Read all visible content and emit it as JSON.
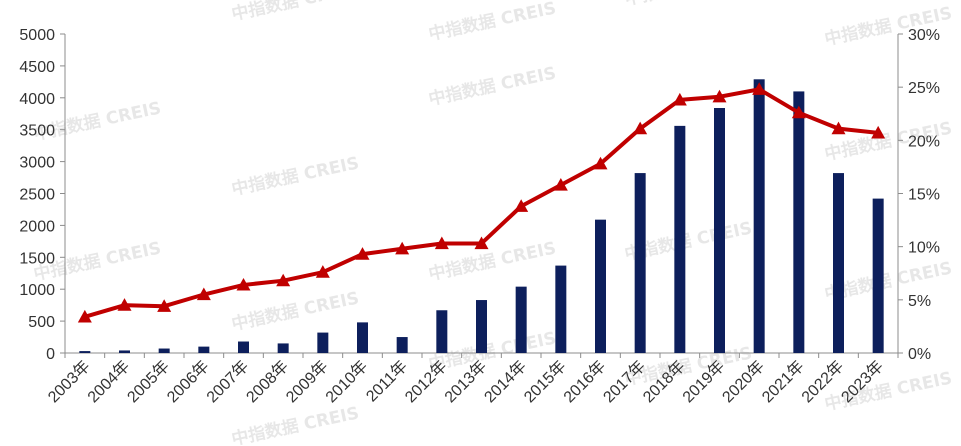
{
  "watermark": "中指数据 CREIS",
  "colors": {
    "bar": "#0d1f5c",
    "line": "#c00000",
    "axis": "#8c8c8c",
    "text": "#333333"
  },
  "chart_data": {
    "type": "bar+line",
    "categories": [
      "2003年",
      "2004年",
      "2005年",
      "2006年",
      "2007年",
      "2008年",
      "2009年",
      "2010年",
      "2011年",
      "2012年",
      "2013年",
      "2014年",
      "2015年",
      "2016年",
      "2017年",
      "2018年",
      "2019年",
      "2020年",
      "2021年",
      "2022年",
      "2023年"
    ],
    "series": [
      {
        "type": "bar",
        "axis": "left",
        "values": [
          30,
          40,
          70,
          100,
          180,
          150,
          320,
          480,
          250,
          670,
          830,
          1040,
          1370,
          2090,
          2820,
          3560,
          3840,
          4290,
          4100,
          2820,
          2420
        ]
      },
      {
        "type": "line",
        "axis": "right",
        "unit": "%",
        "values": [
          3.4,
          4.5,
          4.4,
          5.5,
          6.4,
          6.8,
          7.6,
          9.3,
          9.8,
          10.3,
          10.3,
          13.8,
          15.8,
          17.8,
          21.1,
          23.8,
          24.1,
          24.8,
          22.6,
          21.1,
          20.7
        ]
      }
    ],
    "y_left": {
      "min": 0,
      "max": 5000,
      "ticks": [
        "0",
        "500",
        "1000",
        "1500",
        "2000",
        "2500",
        "3000",
        "3500",
        "4000",
        "4500",
        "5000"
      ]
    },
    "y_right": {
      "min": 0,
      "max": 30,
      "ticks": [
        "0%",
        "5%",
        "10%",
        "15%",
        "20%",
        "25%",
        "30%"
      ]
    },
    "grid": false,
    "legend": "none"
  }
}
